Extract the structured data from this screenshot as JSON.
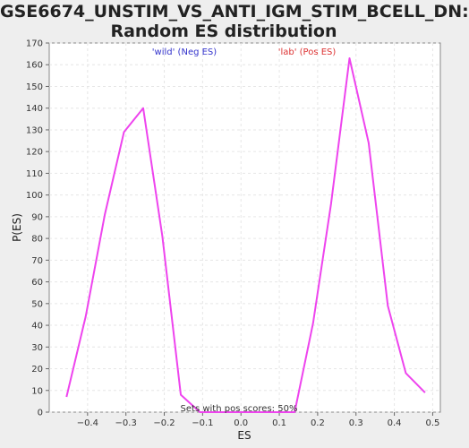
{
  "chart_data": {
    "type": "line",
    "title_lines": [
      "GSE6674_UNSTIM_VS_ANTI_IGM_STIM_BCELL_DN:",
      "Random ES distribution"
    ],
    "xlabel": "ES",
    "ylabel": "P(ES)",
    "xlim": [
      -0.5,
      0.52
    ],
    "ylim": [
      0,
      170
    ],
    "x_ticks": [
      -0.4,
      -0.3,
      -0.2,
      -0.1,
      0.0,
      0.1,
      0.2,
      0.3,
      0.4,
      0.5
    ],
    "x_tick_labels": [
      "−0.4",
      "−0.3",
      "−0.2",
      "−0.1",
      "0.0",
      "0.1",
      "0.2",
      "0.3",
      "0.4",
      "0.5"
    ],
    "y_ticks": [
      0,
      10,
      20,
      30,
      40,
      50,
      60,
      70,
      80,
      90,
      100,
      110,
      120,
      130,
      140,
      150,
      160,
      170
    ],
    "grid": true,
    "series": [
      {
        "color": "#ee44ee",
        "points": [
          [
            -0.455,
            7
          ],
          [
            -0.405,
            44
          ],
          [
            -0.355,
            91
          ],
          [
            -0.305,
            129
          ],
          [
            -0.255,
            140
          ],
          [
            -0.205,
            81
          ],
          [
            -0.157,
            8
          ],
          [
            -0.107,
            0
          ],
          [
            -0.06,
            0
          ],
          [
            -0.01,
            0
          ],
          [
            0.04,
            0
          ],
          [
            0.09,
            0
          ],
          [
            0.14,
            0
          ],
          [
            0.188,
            41
          ],
          [
            0.235,
            96
          ],
          [
            0.283,
            163
          ],
          [
            0.333,
            124
          ],
          [
            0.383,
            49
          ],
          [
            0.43,
            18
          ],
          [
            0.48,
            9
          ]
        ]
      }
    ],
    "annotations": {
      "neg": {
        "text": "'wild' (Neg ES)",
        "color": "#3333cc"
      },
      "pos": {
        "text": "'lab' (Pos ES)",
        "color": "#dd3333"
      },
      "pos_scores": {
        "text": "Sets with pos scores: 50%",
        "color": "#333333"
      }
    }
  }
}
